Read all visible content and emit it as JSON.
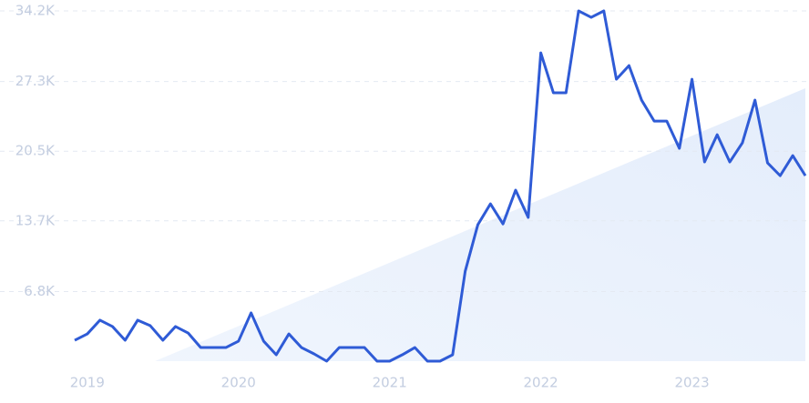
{
  "chart_data": {
    "type": "line",
    "categories": [
      null,
      "2019",
      null,
      null,
      null,
      null,
      null,
      null,
      null,
      null,
      null,
      null,
      null,
      "2020",
      null,
      null,
      null,
      null,
      null,
      null,
      null,
      null,
      null,
      null,
      null,
      "2021",
      null,
      null,
      null,
      null,
      null,
      null,
      null,
      null,
      null,
      null,
      null,
      "2022",
      null,
      null,
      null,
      null,
      null,
      null,
      null,
      null,
      null,
      null,
      null,
      "2023",
      null,
      null,
      null,
      null,
      null,
      null,
      null,
      null,
      null
    ],
    "series": [
      {
        "color": "#2f5bd6",
        "values": [
          2040,
          2660,
          4000,
          3380,
          2040,
          4000,
          3460,
          2040,
          3380,
          2750,
          1330,
          1330,
          1330,
          1950,
          4710,
          1950,
          620,
          2660,
          1330,
          710,
          0,
          1330,
          1330,
          1330,
          0,
          0,
          620,
          1330,
          0,
          0,
          620,
          8790,
          13320,
          15360,
          13400,
          16700,
          14030,
          30100,
          26200,
          26200,
          34200,
          33570,
          34200,
          27530,
          28860,
          25490,
          23440,
          23440,
          20780,
          27530,
          19450,
          22110,
          19450,
          21310,
          25490,
          19360,
          18110,
          20070,
          18110
        ]
      }
    ],
    "ylim": [
      0,
      34200
    ],
    "yticks": [
      {
        "value": 6800,
        "label": "6.8K"
      },
      {
        "value": 13700,
        "label": "13.7K"
      },
      {
        "value": 20500,
        "label": "20.5K"
      },
      {
        "value": 27300,
        "label": "27.3K"
      },
      {
        "value": 34200,
        "label": "34.2K"
      }
    ],
    "grid": true
  }
}
